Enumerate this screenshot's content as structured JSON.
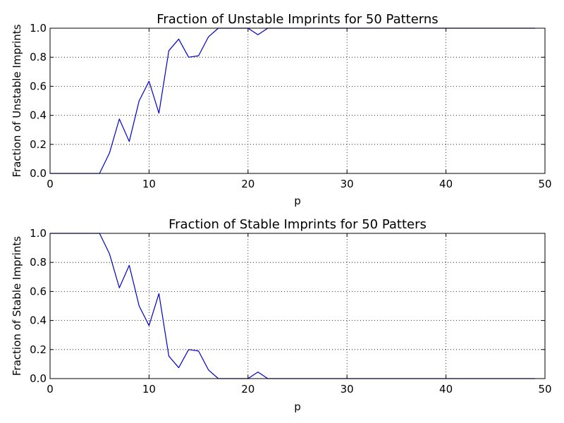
{
  "colors": {
    "series": "#0000cc",
    "axes": "#000000",
    "background": "#ffffff"
  },
  "chart_data": [
    {
      "type": "line",
      "title": "Fraction of Unstable Imprints for 50 Patterns",
      "xlabel": "p",
      "ylabel": "Fraction of Unstable Imprints",
      "xlim": [
        0,
        50
      ],
      "ylim": [
        0,
        1
      ],
      "xticks": [
        "0",
        "10",
        "20",
        "30",
        "40",
        "50"
      ],
      "yticks": [
        "0.0",
        "0.2",
        "0.4",
        "0.6",
        "0.8",
        "1.0"
      ],
      "grid": true,
      "x": [
        0,
        1,
        2,
        3,
        4,
        5,
        6,
        7,
        8,
        9,
        10,
        11,
        12,
        13,
        14,
        15,
        16,
        17,
        18,
        19,
        20,
        21,
        22,
        23,
        24,
        25,
        26,
        27,
        28,
        29,
        30,
        31,
        32,
        33,
        34,
        35,
        36,
        37,
        38,
        39,
        40,
        41,
        42,
        43,
        44,
        45,
        46,
        47,
        48,
        49
      ],
      "values": [
        0,
        0,
        0,
        0,
        0,
        0,
        0.14,
        0.375,
        0.22,
        0.5,
        0.635,
        0.415,
        0.845,
        0.925,
        0.8,
        0.81,
        0.94,
        1,
        1,
        1,
        1,
        0.955,
        1,
        1,
        1,
        1,
        1,
        1,
        1,
        1,
        1,
        1,
        1,
        1,
        1,
        1,
        1,
        1,
        1,
        1,
        1,
        1,
        1,
        1,
        1,
        1,
        1,
        1,
        1,
        1
      ]
    },
    {
      "type": "line",
      "title": "Fraction of Stable Imprints for 50 Patters",
      "xlabel": "p",
      "ylabel": "Fraction of Stable Imprints",
      "xlim": [
        0,
        50
      ],
      "ylim": [
        0,
        1
      ],
      "xticks": [
        "0",
        "10",
        "20",
        "30",
        "40",
        "50"
      ],
      "yticks": [
        "0.0",
        "0.2",
        "0.4",
        "0.6",
        "0.8",
        "1.0"
      ],
      "grid": true,
      "x": [
        0,
        1,
        2,
        3,
        4,
        5,
        6,
        7,
        8,
        9,
        10,
        11,
        12,
        13,
        14,
        15,
        16,
        17,
        18,
        19,
        20,
        21,
        22,
        23,
        24,
        25,
        26,
        27,
        28,
        29,
        30,
        31,
        32,
        33,
        34,
        35,
        36,
        37,
        38,
        39,
        40,
        41,
        42,
        43,
        44,
        45,
        46,
        47,
        48,
        49
      ],
      "values": [
        1,
        1,
        1,
        1,
        1,
        1,
        0.86,
        0.625,
        0.78,
        0.5,
        0.365,
        0.585,
        0.155,
        0.075,
        0.2,
        0.19,
        0.06,
        0,
        0,
        0,
        0,
        0.045,
        0,
        0,
        0,
        0,
        0,
        0,
        0,
        0,
        0,
        0,
        0,
        0,
        0,
        0,
        0,
        0,
        0,
        0,
        0,
        0,
        0,
        0,
        0,
        0,
        0,
        0,
        0,
        0
      ]
    }
  ]
}
